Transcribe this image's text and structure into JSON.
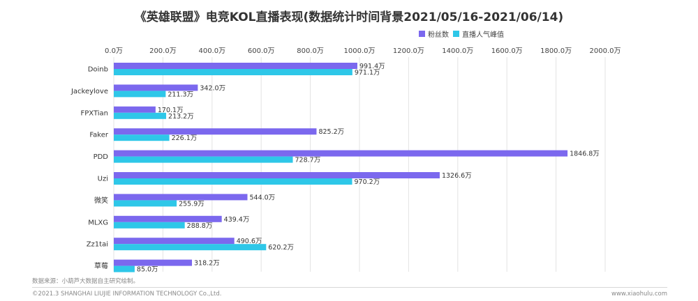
{
  "chart_data": {
    "type": "bar",
    "orientation": "horizontal",
    "title": "《英雄联盟》电竞KOL直播表现(数据统计时间背景2021/05/16-2021/06/14)",
    "categories": [
      "Doinb",
      "Jackeylove",
      "FPXTian",
      "Faker",
      "PDD",
      "Uzi",
      "微笑",
      "MLXG",
      "Zz1tai",
      "草莓"
    ],
    "series": [
      {
        "name": "粉丝数",
        "color": "#7b68ee",
        "values": [
          991.4,
          342.0,
          170.1,
          825.2,
          1846.8,
          1326.6,
          544.0,
          439.4,
          490.6,
          318.2
        ],
        "labels": [
          "991.4万",
          "342.0万",
          "170.1万",
          "825.2万",
          "1846.8万",
          "1326.6万",
          "544.0万",
          "439.4万",
          "490.6万",
          "318.2万"
        ]
      },
      {
        "name": "直播人气峰值",
        "color": "#2ec7e8",
        "values": [
          971.1,
          211.3,
          213.2,
          226.1,
          728.7,
          970.2,
          255.9,
          288.8,
          620.2,
          85.0
        ],
        "labels": [
          "971.1万",
          "211.3万",
          "213.2万",
          "226.1万",
          "728.7万",
          "970.2万",
          "255.9万",
          "288.8万",
          "620.2万",
          "85.0万"
        ]
      }
    ],
    "xlim": [
      0,
      2000
    ],
    "ticks": [
      0,
      200,
      400,
      600,
      800,
      1000,
      1200,
      1400,
      1600,
      1800,
      2000
    ],
    "tick_labels": [
      "0.0万",
      "200.0万",
      "400.0万",
      "600.0万",
      "800.0万",
      "1000.0万",
      "1200.0万",
      "1400.0万",
      "1600.0万",
      "1800.0万",
      "2000.0万"
    ],
    "axis_position": "top",
    "grid": true,
    "legend": "top-right"
  },
  "footer": {
    "source": "数据来源：小葫芦大数据自主研究绘制。",
    "copyright": "©2021.3 SHANGHAI LIUJIE INFORMATION  TECHNOLOGY Co.,Ltd.",
    "site": "www.xiaohulu.com"
  }
}
